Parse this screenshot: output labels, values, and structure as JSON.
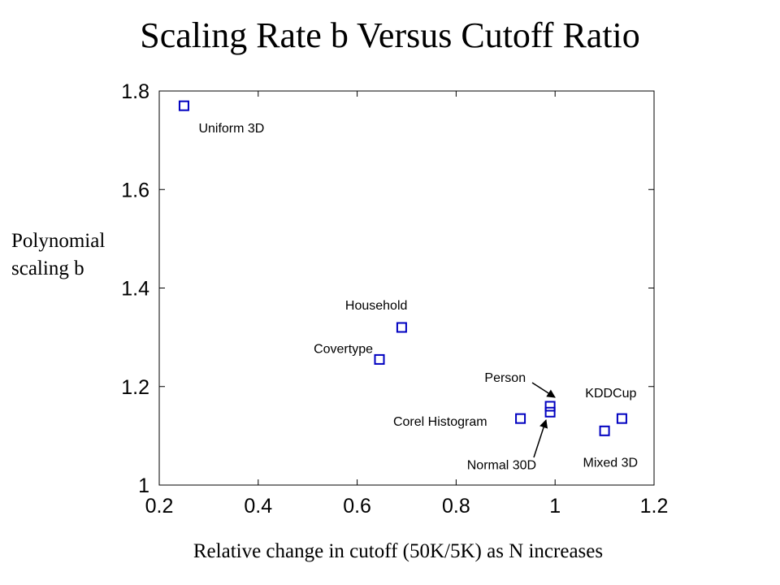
{
  "chart_data": {
    "type": "scatter",
    "title": "Scaling Rate b Versus Cutoff Ratio",
    "xlabel": "Relative change in cutoff (50K/5K) as N increases",
    "ylabel": "Polynomial scaling b",
    "xlim": [
      0.2,
      1.2
    ],
    "ylim": [
      1.0,
      1.8
    ],
    "xticks": [
      "0.2",
      "0.4",
      "0.6",
      "0.8",
      "1",
      "1.2"
    ],
    "yticks": [
      "1",
      "1.2",
      "1.4",
      "1.6",
      "1.8"
    ],
    "grid": false,
    "marker": "square",
    "marker_color": "#0000c0",
    "points": [
      {
        "label": "Uniform 3D",
        "x": 0.25,
        "y": 1.77
      },
      {
        "label": "Household",
        "x": 0.69,
        "y": 1.32
      },
      {
        "label": "Covertype",
        "x": 0.645,
        "y": 1.255
      },
      {
        "label": "Person",
        "x": 0.99,
        "y": 1.16
      },
      {
        "label": "Normal 30D",
        "x": 0.99,
        "y": 1.148
      },
      {
        "label": "Corel Histogram",
        "x": 0.93,
        "y": 1.135
      },
      {
        "label": "KDDCup",
        "x": 1.135,
        "y": 1.135
      },
      {
        "label": "Mixed 3D",
        "x": 1.1,
        "y": 1.11
      }
    ]
  }
}
